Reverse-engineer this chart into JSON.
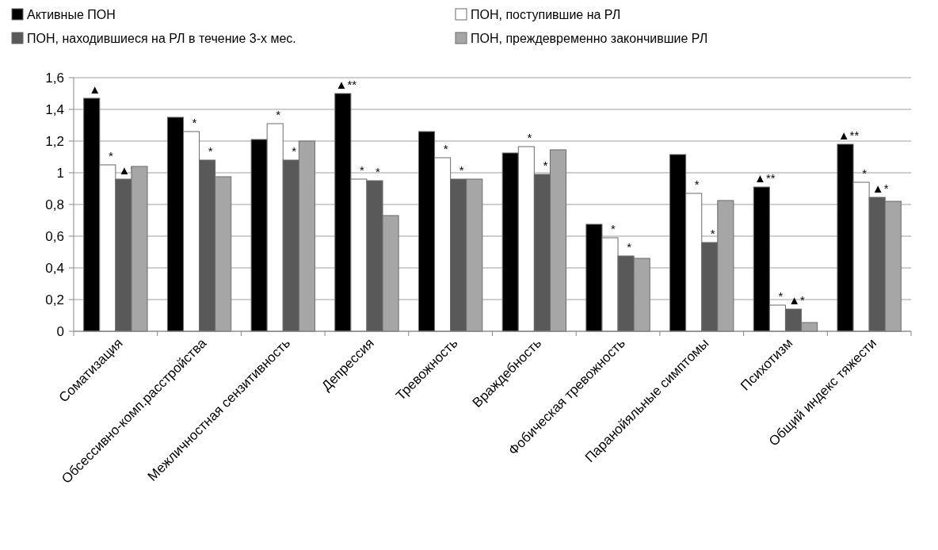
{
  "chart_data": {
    "type": "bar",
    "categories": [
      "Соматизация",
      "Обсессивно-комп.расстройства",
      "Межличностная сензитивность",
      "Депрессия",
      "Тревожность",
      "Враждебность",
      "Фобическая тревожность",
      "Паранойяльные симптомы",
      "Психотизм",
      "Общий индекс тяжести"
    ],
    "series": [
      {
        "name": "Активные ПОН",
        "color": "#000000",
        "values": [
          1.47,
          1.35,
          1.21,
          1.5,
          1.26,
          1.125,
          0.675,
          1.115,
          0.91,
          1.18
        ],
        "value_labels": [
          "▲",
          null,
          null,
          "▲**",
          null,
          null,
          null,
          null,
          "▲**",
          "▲**"
        ]
      },
      {
        "name": "ПОН, поступившие на РЛ",
        "color": "#ffffff",
        "values": [
          1.05,
          1.26,
          1.31,
          0.96,
          1.095,
          1.165,
          0.59,
          0.87,
          0.165,
          0.94
        ],
        "value_labels": [
          "*",
          "*",
          "*",
          "*",
          "*",
          "*",
          "*",
          "*",
          "*",
          "*"
        ]
      },
      {
        "name": "ПОН, находившиеся на РЛ в течение 3-х мес.",
        "color": "#595959",
        "values": [
          0.96,
          1.08,
          1.08,
          0.95,
          0.96,
          0.99,
          0.475,
          0.56,
          0.14,
          0.845
        ],
        "value_labels": [
          "▲*",
          "*",
          "*",
          "*",
          "*",
          "*",
          "*",
          "*",
          "▲*",
          "▲*"
        ]
      },
      {
        "name": "ПОН, преждевременно закончившие РЛ",
        "color": "#a6a6a6",
        "values": [
          1.04,
          0.975,
          1.2,
          0.73,
          0.96,
          1.145,
          0.46,
          0.825,
          0.055,
          0.82
        ]
      }
    ],
    "ylim": [
      0,
      1.6
    ],
    "yticks": [
      0,
      {
        "value": 0.2,
        "label": "0,2"
      },
      {
        "value": 0.4,
        "label": "0,4"
      },
      {
        "value": 0.6,
        "label": "0,6"
      },
      {
        "value": 0.8,
        "label": "0,8"
      },
      1,
      {
        "value": 1.2,
        "label": "1,2"
      },
      {
        "value": 1.4,
        "label": "1,4"
      },
      {
        "value": 1.6,
        "label": "1,6"
      }
    ],
    "grid": "y",
    "legend": "top"
  }
}
